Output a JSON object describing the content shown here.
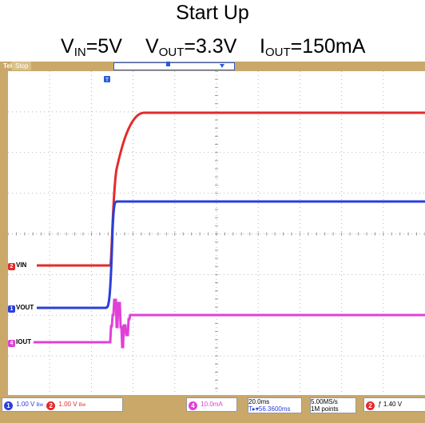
{
  "caption": {
    "title": "Start Up",
    "vin_sym": "V",
    "vin_sub": "IN",
    "vin_val": "=5V",
    "vout_sym": "V",
    "vout_sub": "OUT",
    "vout_val": "=3.3V",
    "iout_sym": "I",
    "iout_sub": "OUT",
    "iout_val": "=150mA"
  },
  "scope": {
    "brand": "Tek",
    "run_state": "Stop",
    "trigger_marker": "T",
    "channels": [
      {
        "id": "2",
        "label": "VIN",
        "color": "#e32b2b"
      },
      {
        "id": "1",
        "label": "VOUT",
        "color": "#2a3fd8"
      },
      {
        "id": "4",
        "label": "IOUT",
        "color": "#e040d8"
      }
    ]
  },
  "status": {
    "ch1_num": "1",
    "ch1_scale": "1.00 V",
    "ch1_bw": "Bw",
    "ch2_num": "2",
    "ch2_scale": "1.00 V",
    "ch2_bw": "Bw",
    "ch4_num": "4",
    "ch4_scale": "10.0mA",
    "timebase": "20.0ms",
    "trig_pos": "T▸▾56.3600ms",
    "sample_rate": "5.00MS/s",
    "record_len": "1M points",
    "trig_src": "2",
    "trig_slope": "ƒ",
    "trig_level": "1.40 V"
  },
  "colors": {
    "frame": "#c9a86a",
    "vin": "#e32b2b",
    "vout": "#2a3fd8",
    "iout": "#e040d8",
    "grid": "#b8b8b8"
  }
}
